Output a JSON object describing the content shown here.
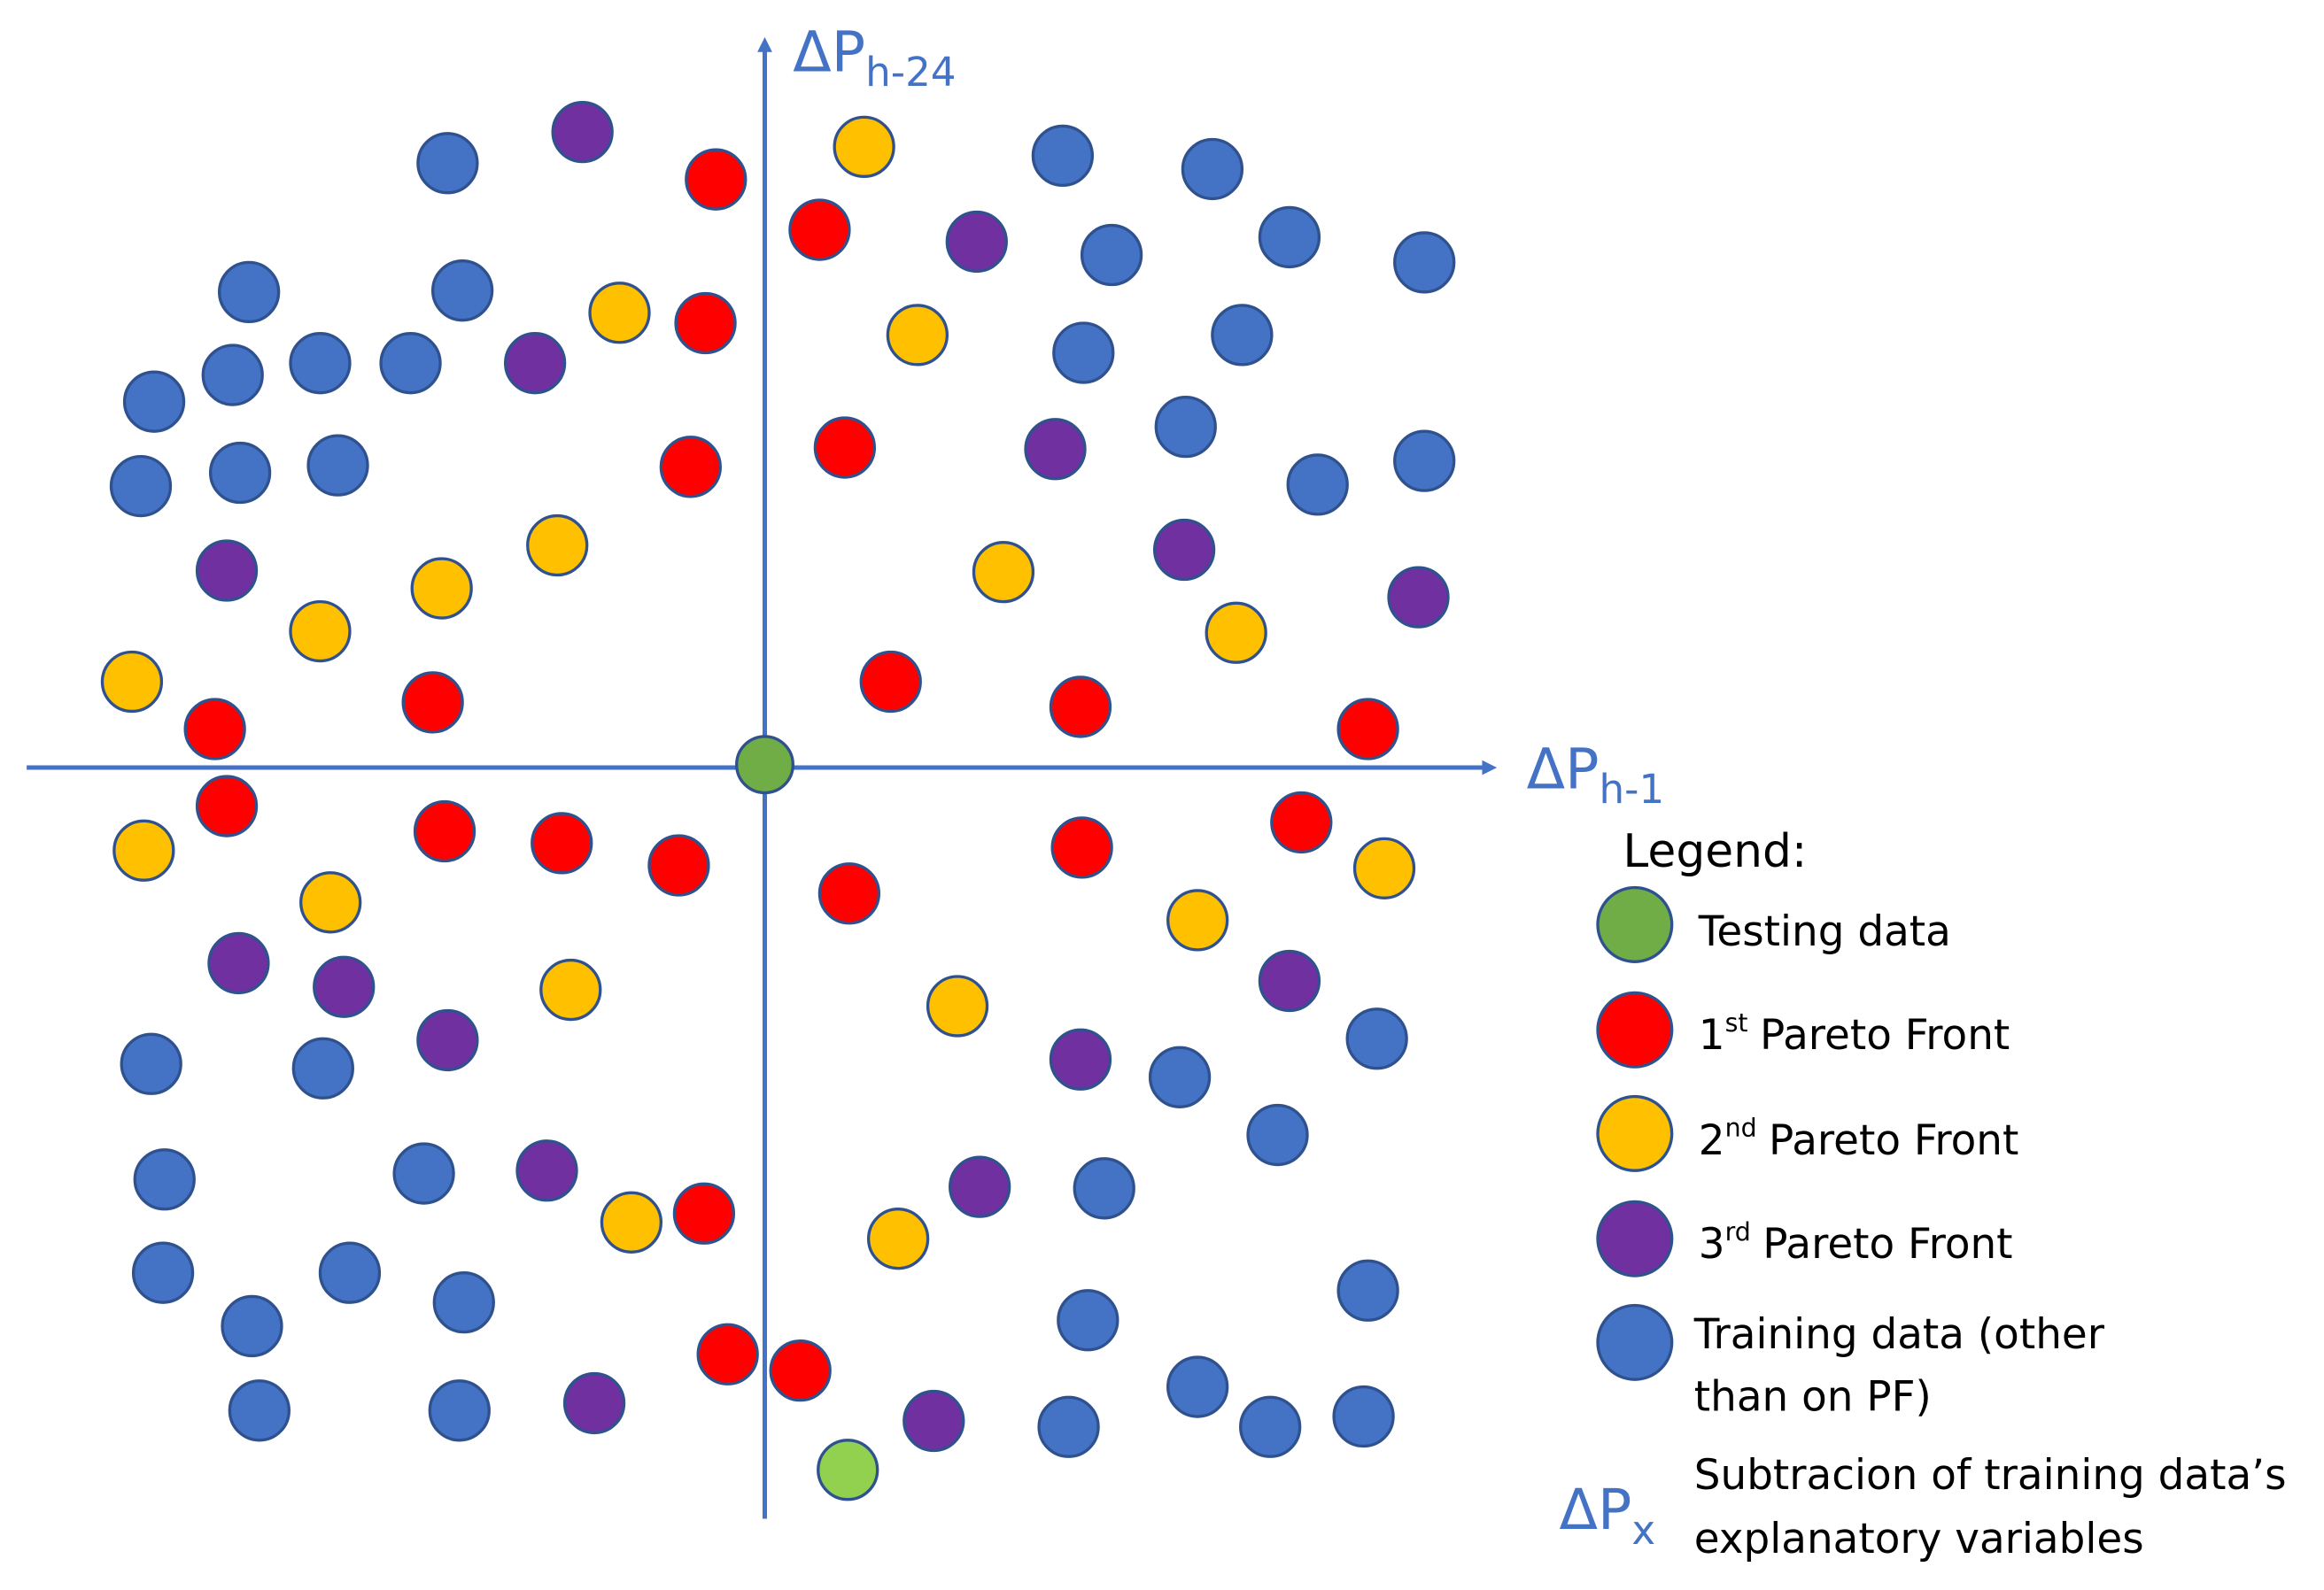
{
  "axes": {
    "y_label": {
      "main": "ΔP",
      "sub": "h-24"
    },
    "x_label": {
      "main": "ΔP",
      "sub": "h-1"
    }
  },
  "legend": {
    "title": "Legend:",
    "testing": "Testing data",
    "first": {
      "number": "1",
      "sup": "st",
      "text": "Pareto Front"
    },
    "second": {
      "number": "2",
      "sup": "nd",
      "text": "Pareto Front"
    },
    "third": {
      "number": "3",
      "sup": "rd",
      "text": "Pareto Front"
    },
    "training": [
      "Training data (other",
      "than on PF)"
    ],
    "symbol": {
      "main": "ΔP",
      "sub": "x"
    },
    "symbol_text": [
      "Subtracion of training data’s",
      "explanatory variables"
    ]
  }
}
